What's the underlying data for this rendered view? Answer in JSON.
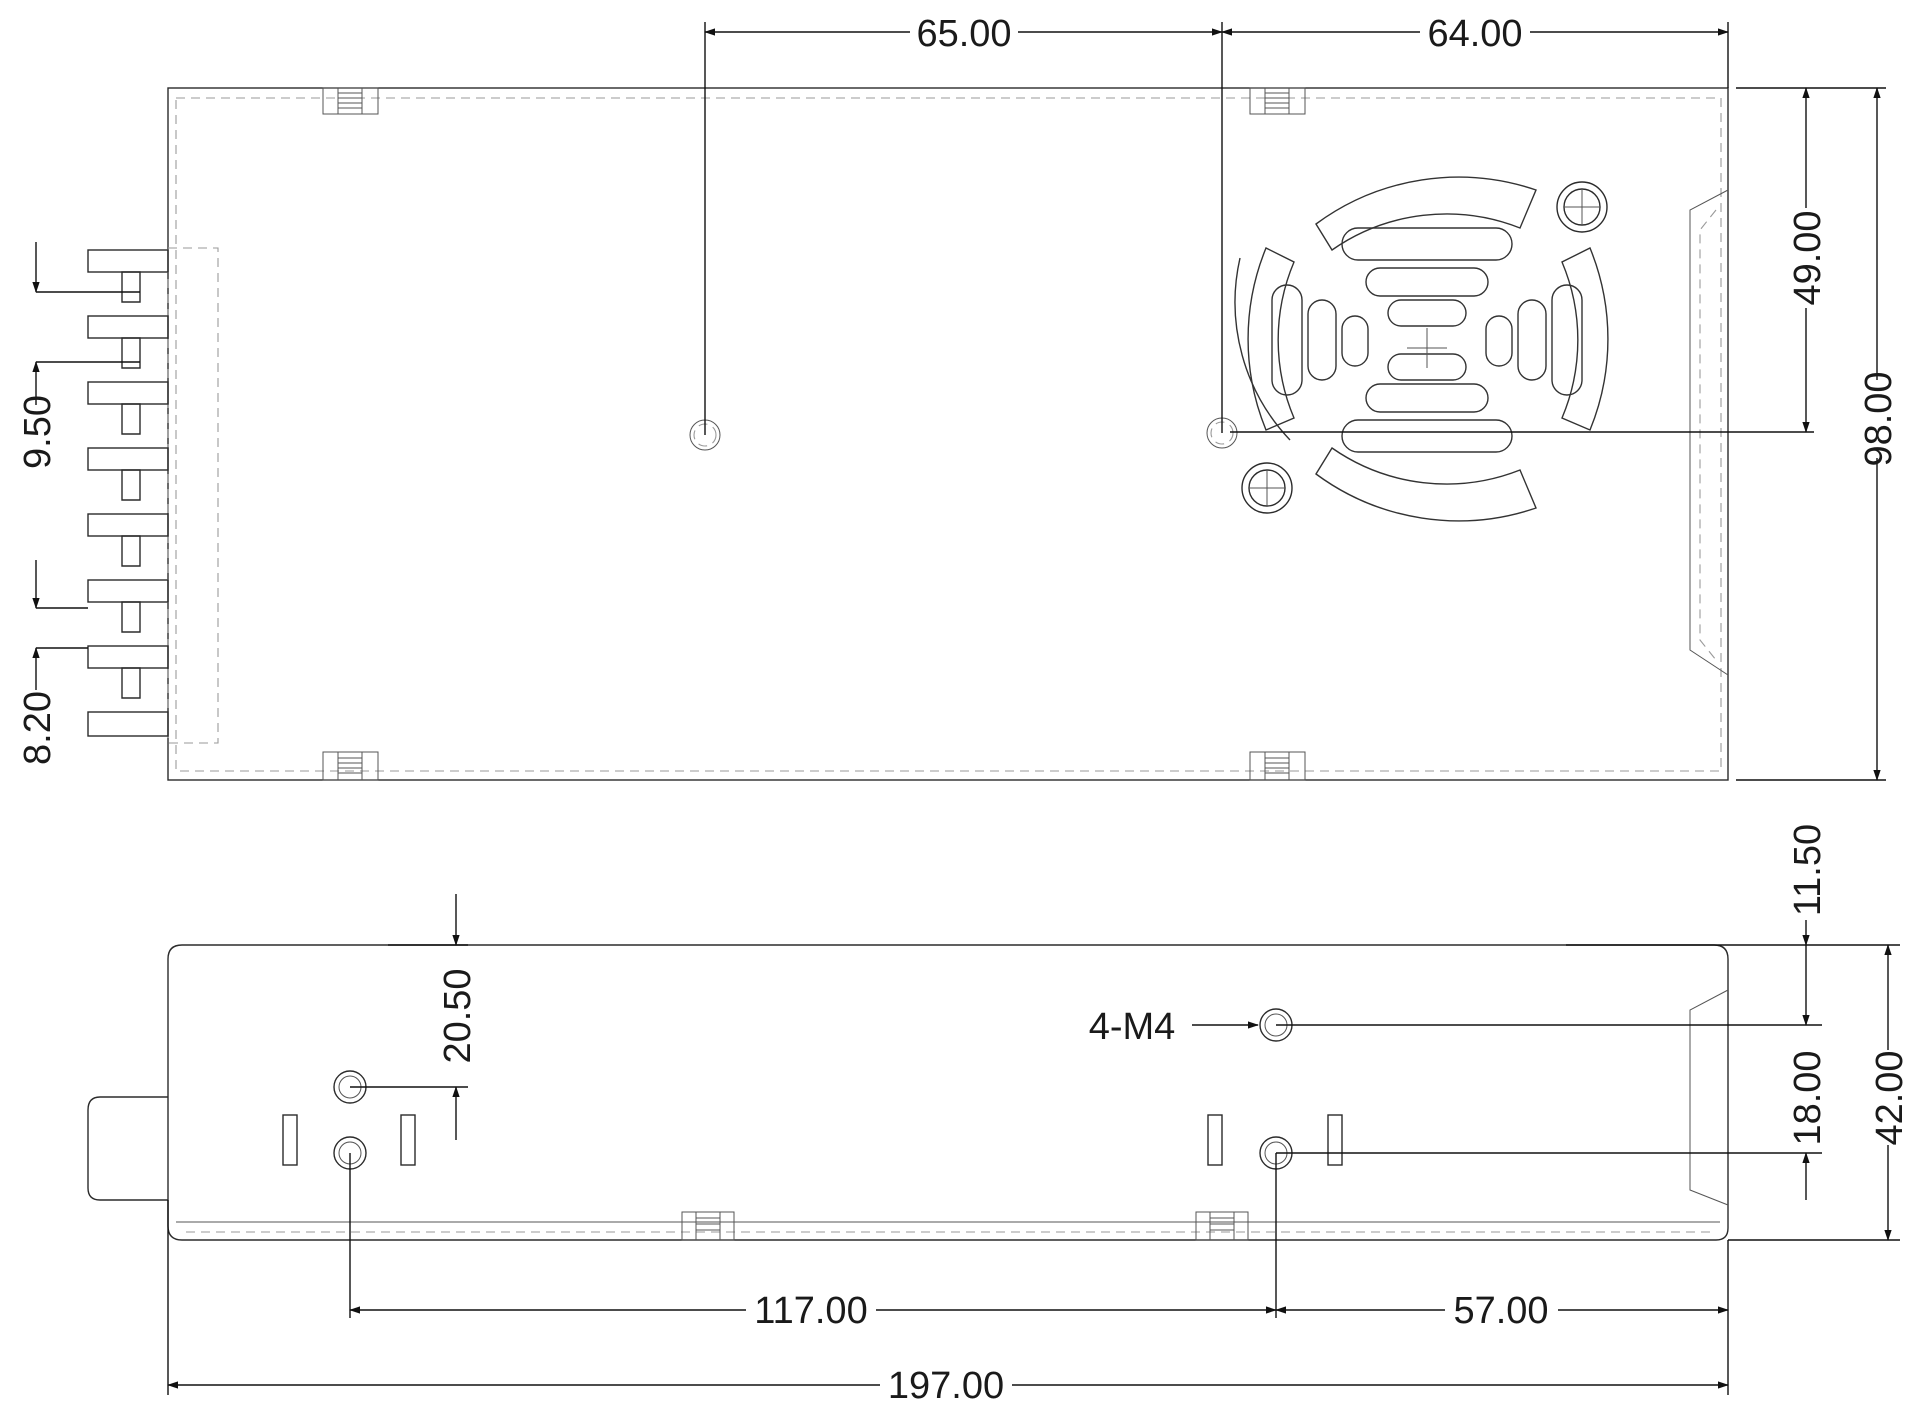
{
  "dimensions": {
    "top_left": "65.00",
    "top_right": "64.00",
    "right_upper": "49.00",
    "right_total": "98.00",
    "left_pitch": "9.50",
    "left_width": "8.20",
    "side_top_offset": "11.50",
    "side_hole_spacing": "18.00",
    "side_total_height": "42.00",
    "side_left_offset": "20.50",
    "bottom_left": "117.00",
    "bottom_right": "57.00",
    "bottom_total": "197.00",
    "thread_callout": "4-M4"
  },
  "colors": {
    "line": "#2b2b2b",
    "hidden_line": "#9a9a9a",
    "text": "#1a1a1a"
  }
}
